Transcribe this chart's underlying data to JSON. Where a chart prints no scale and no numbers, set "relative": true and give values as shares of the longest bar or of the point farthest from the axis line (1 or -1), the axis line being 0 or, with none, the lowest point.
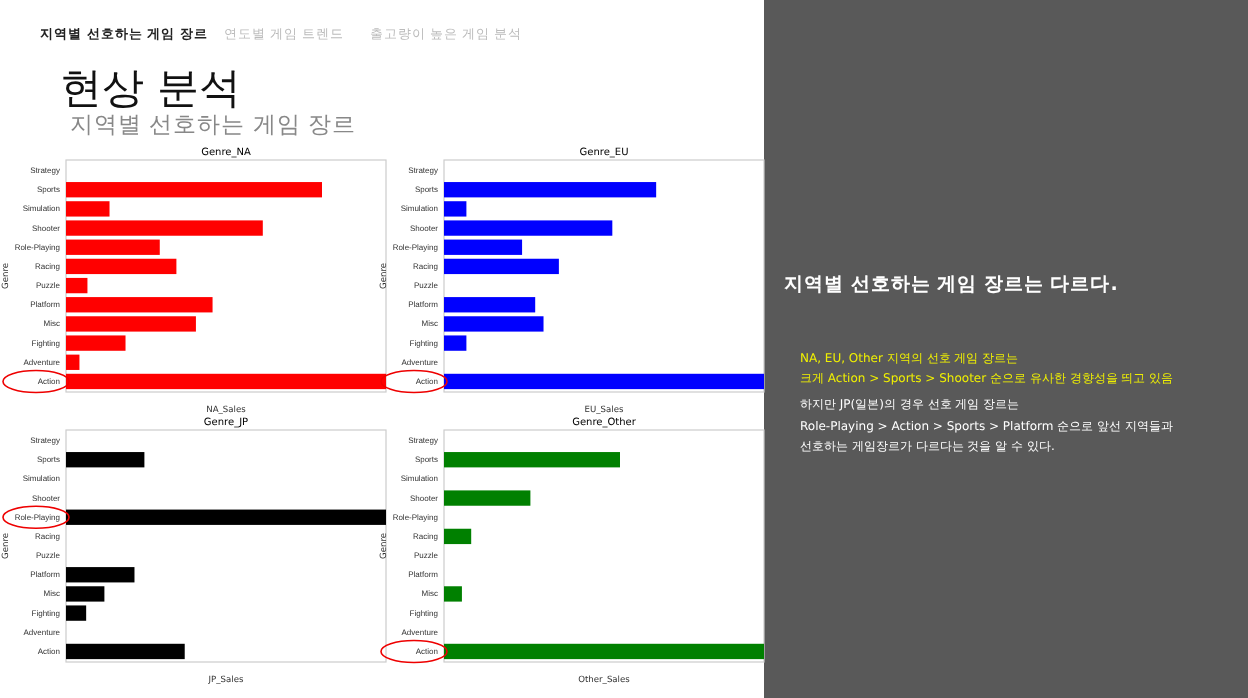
{
  "chart_data": [
    {
      "type": "other",
      "title": "현상 분석",
      "subtitle": "지역별 선호하는 게임 장르",
      "annotations": [
        "지역별 선호하는 게임 장르",
        "연도별 게임 트렌드",
        "출고량이 높은 게임 분석",
        "지역별 선호하는 게임 장르는 다르다.",
        "NA, EU, Other 지역의 선호 게임 장르는",
        "크게 Action > Sports > Shooter 순으로 유사한 경향성을 띄고  있음",
        "하지만 JP(일본)의 경우 선호 게임 장르는",
        "Role-Playing > Action > Sports > Platform 순으로 앞선 지역들과",
        "선호하는 게임장르가 다르다는 것을 알 수 있다."
      ]
    },
    {
      "type": "bar",
      "orientation": "horizontal",
      "relative": true,
      "title": "Genre_NA",
      "xlabel": "NA_Sales",
      "ylabel": "Genre",
      "color": "#ff0000",
      "categories": [
        "Strategy",
        "Sports",
        "Simulation",
        "Shooter",
        "Role-Playing",
        "Racing",
        "Puzzle",
        "Platform",
        "Misc",
        "Fighting",
        "Adventure",
        "Action"
      ],
      "values": [
        0,
        0.8,
        0.136,
        0.615,
        0.293,
        0.345,
        0.067,
        0.458,
        0.406,
        0.186,
        0.042,
        1
      ]
    },
    {
      "type": "bar",
      "orientation": "horizontal",
      "relative": true,
      "title": "Genre_EU",
      "xlabel": "EU_Sales",
      "ylabel": "Genre",
      "color": "#0000ff",
      "categories": [
        "Strategy",
        "Sports",
        "Simulation",
        "Shooter",
        "Role-Playing",
        "Racing",
        "Puzzle",
        "Platform",
        "Misc",
        "Fighting",
        "Adventure",
        "Action"
      ],
      "values": [
        0,
        0.663,
        0.07,
        0.526,
        0.244,
        0.359,
        0,
        0.285,
        0.311,
        0.07,
        0,
        1
      ]
    },
    {
      "type": "bar",
      "orientation": "horizontal",
      "relative": true,
      "title": "Genre_JP",
      "xlabel": "JP_Sales",
      "ylabel": "Genre",
      "color": "#000000",
      "categories": [
        "Strategy",
        "Sports",
        "Simulation",
        "Shooter",
        "Role-Playing",
        "Racing",
        "Puzzle",
        "Platform",
        "Misc",
        "Fighting",
        "Adventure",
        "Action"
      ],
      "values": [
        0,
        0.245,
        0,
        0,
        1,
        0,
        0,
        0.214,
        0.12,
        0.063,
        0,
        0.371
      ]
    },
    {
      "type": "bar",
      "orientation": "horizontal",
      "relative": true,
      "title": "Genre_Other",
      "xlabel": "Other_Sales",
      "ylabel": "Genre",
      "color": "#008000",
      "categories": [
        "Strategy",
        "Sports",
        "Simulation",
        "Shooter",
        "Role-Playing",
        "Racing",
        "Puzzle",
        "Platform",
        "Misc",
        "Fighting",
        "Adventure",
        "Action"
      ],
      "values": [
        0,
        0.55,
        0,
        0.27,
        0,
        0.085,
        0,
        0,
        0.056,
        0,
        0,
        1
      ]
    }
  ]
}
